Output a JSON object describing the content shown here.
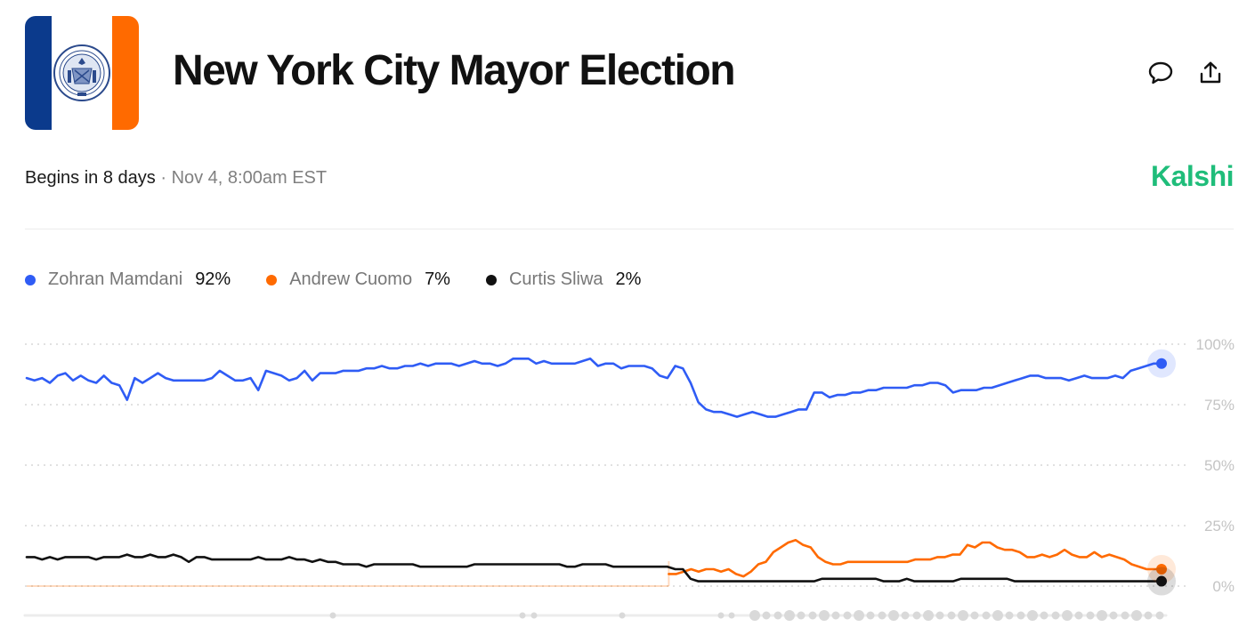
{
  "header": {
    "title": "New York City Mayor Election",
    "flag_colors": {
      "left": "#0b3a8c",
      "right": "#ff6a00"
    },
    "actions": [
      "comment-icon",
      "share-icon"
    ]
  },
  "meta": {
    "status": "Begins in 8 days",
    "separator": "·",
    "date": "Nov 4, 8:00am EST"
  },
  "brand": "Kalshi",
  "legend": [
    {
      "name": "Zohran Mamdani",
      "value": "92%",
      "color": "#2f5cf5"
    },
    {
      "name": "Andrew Cuomo",
      "value": "7%",
      "color": "#ff6a00"
    },
    {
      "name": "Curtis Sliwa",
      "value": "2%",
      "color": "#111111"
    }
  ],
  "chart_data": {
    "type": "line",
    "ylim": [
      0,
      100
    ],
    "y_ticks": [
      "100%",
      "75%",
      "50%",
      "25%",
      "0%"
    ],
    "grid": true,
    "legend_placement": "top-left",
    "series": [
      {
        "name": "Zohran Mamdani",
        "color": "#2f5cf5",
        "values": [
          86,
          85,
          86,
          84,
          87,
          88,
          85,
          87,
          85,
          84,
          87,
          84,
          83,
          77,
          86,
          84,
          86,
          88,
          86,
          85,
          85,
          85,
          85,
          85,
          86,
          89,
          87,
          85,
          85,
          86,
          81,
          89,
          88,
          87,
          85,
          86,
          89,
          85,
          88,
          88,
          88,
          89,
          89,
          89,
          90,
          90,
          91,
          90,
          90,
          91,
          91,
          92,
          91,
          92,
          92,
          92,
          91,
          92,
          93,
          92,
          92,
          91,
          92,
          94,
          94,
          94,
          92,
          93,
          92,
          92,
          92,
          92,
          93,
          94,
          91,
          92,
          92,
          90,
          91,
          91,
          91,
          90,
          87,
          86,
          91,
          90,
          84,
          76,
          73,
          72,
          72,
          71,
          70,
          71,
          72,
          71,
          70,
          70,
          71,
          72,
          73,
          73,
          80,
          80,
          78,
          79,
          79,
          80,
          80,
          81,
          81,
          82,
          82,
          82,
          82,
          83,
          83,
          84,
          84,
          83,
          80,
          81,
          81,
          81,
          82,
          82,
          83,
          84,
          85,
          86,
          87,
          87,
          86,
          86,
          86,
          85,
          86,
          87,
          86,
          86,
          86,
          87,
          86,
          89,
          90,
          91,
          92,
          92
        ],
        "end_value": 92
      },
      {
        "name": "Andrew Cuomo",
        "color": "#ff6a00",
        "values": [
          null,
          null,
          null,
          null,
          null,
          null,
          null,
          null,
          null,
          null,
          null,
          null,
          null,
          null,
          null,
          null,
          null,
          null,
          null,
          null,
          null,
          null,
          null,
          null,
          null,
          null,
          null,
          null,
          null,
          null,
          null,
          null,
          null,
          null,
          null,
          null,
          null,
          null,
          null,
          null,
          null,
          null,
          null,
          null,
          null,
          null,
          null,
          null,
          null,
          null,
          null,
          null,
          null,
          null,
          null,
          null,
          null,
          null,
          null,
          null,
          null,
          null,
          null,
          null,
          null,
          null,
          null,
          null,
          null,
          null,
          null,
          null,
          null,
          null,
          null,
          null,
          null,
          null,
          null,
          null,
          null,
          null,
          null,
          null,
          null,
          null,
          5,
          5,
          6,
          7,
          6,
          7,
          7,
          6,
          7,
          5,
          4,
          6,
          9,
          10,
          14,
          16,
          18,
          19,
          17,
          16,
          12,
          10,
          9,
          9,
          10,
          10,
          10,
          10,
          10,
          10,
          10,
          10,
          10,
          11,
          11,
          11,
          12,
          12,
          13,
          13,
          17,
          16,
          18,
          18,
          16,
          15,
          15,
          14,
          12,
          12,
          13,
          12,
          13,
          15,
          13,
          12,
          12,
          14,
          12,
          13,
          12,
          11,
          9,
          8,
          7,
          7,
          7
        ],
        "end_value": 7
      },
      {
        "name": "Curtis Sliwa",
        "color": "#111111",
        "values": [
          12,
          12,
          11,
          12,
          11,
          12,
          12,
          12,
          12,
          11,
          12,
          12,
          12,
          13,
          12,
          12,
          13,
          12,
          12,
          13,
          12,
          10,
          12,
          12,
          11,
          11,
          11,
          11,
          11,
          11,
          12,
          11,
          11,
          11,
          12,
          11,
          11,
          10,
          11,
          10,
          10,
          9,
          9,
          9,
          8,
          9,
          9,
          9,
          9,
          9,
          9,
          8,
          8,
          8,
          8,
          8,
          8,
          8,
          9,
          9,
          9,
          9,
          9,
          9,
          9,
          9,
          9,
          9,
          9,
          9,
          8,
          8,
          9,
          9,
          9,
          9,
          8,
          8,
          8,
          8,
          8,
          8,
          8,
          8,
          7,
          7,
          3,
          2,
          2,
          2,
          2,
          2,
          2,
          2,
          2,
          2,
          2,
          2,
          2,
          2,
          2,
          2,
          2,
          3,
          3,
          3,
          3,
          3,
          3,
          3,
          3,
          2,
          2,
          2,
          3,
          2,
          2,
          2,
          2,
          2,
          2,
          3,
          3,
          3,
          3,
          3,
          3,
          3,
          2,
          2,
          2,
          2,
          2,
          2,
          2,
          2,
          2,
          2,
          2,
          2,
          2,
          2,
          2,
          2,
          2,
          2,
          2,
          2
        ],
        "end_value": 2
      }
    ]
  }
}
